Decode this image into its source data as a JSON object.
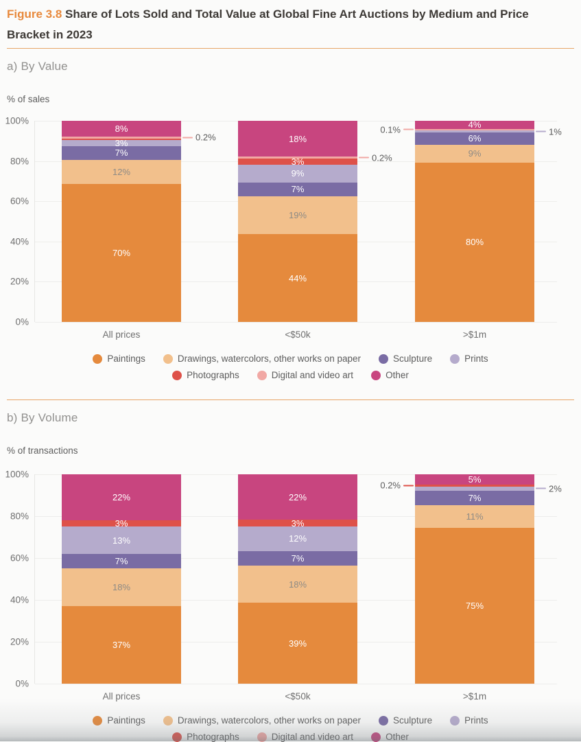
{
  "figure": {
    "label": "Figure 3.8",
    "title": "Share of Lots Sold and Total Value at Global Fine Art Auctions by Medium and Price Bracket in 2023"
  },
  "colors": {
    "accent": "#E8893C",
    "divider": "#E7A567",
    "paintings": "#E58A3D",
    "drawings": "#F2C08C",
    "sculpture": "#7A6CA4",
    "prints": "#B5ABCC",
    "photographs": "#DE5149",
    "digital": "#F1A8A4",
    "other": "#C8457F"
  },
  "legend": [
    {
      "key": "paintings",
      "label": "Paintings"
    },
    {
      "key": "drawings",
      "label": "Drawings, watercolors, other works on paper"
    },
    {
      "key": "sculpture",
      "label": "Sculpture"
    },
    {
      "key": "prints",
      "label": "Prints"
    },
    {
      "key": "photographs",
      "label": "Photographs"
    },
    {
      "key": "digital",
      "label": "Digital and video art"
    },
    {
      "key": "other",
      "label": "Other"
    }
  ],
  "chart_data": [
    {
      "type": "bar",
      "stacked": true,
      "section_label": "a) By Value",
      "ylabel": "% of sales",
      "ylim": [
        0,
        100
      ],
      "yticks": [
        0,
        20,
        40,
        60,
        80,
        100
      ],
      "grid": true,
      "legend_position": "bottom",
      "categories": [
        "All prices",
        "<$50k",
        ">$1m"
      ],
      "bars": [
        {
          "category": "All prices",
          "segments": [
            {
              "key": "paintings",
              "value": 70,
              "label": "70%"
            },
            {
              "key": "drawings",
              "value": 12,
              "label": "12%"
            },
            {
              "key": "sculpture",
              "value": 7,
              "label": "7%"
            },
            {
              "key": "prints",
              "value": 3,
              "label": "3%"
            },
            {
              "key": "photographs",
              "value": 0.8,
              "label": null
            },
            {
              "key": "digital",
              "value": 0.2,
              "label": null,
              "callout": {
                "text": "0.2%",
                "side": "right"
              }
            },
            {
              "key": "other",
              "value": 8,
              "label": "8%"
            }
          ]
        },
        {
          "category": "<$50k",
          "segments": [
            {
              "key": "paintings",
              "value": 44,
              "label": "44%"
            },
            {
              "key": "drawings",
              "value": 19,
              "label": "19%"
            },
            {
              "key": "sculpture",
              "value": 7,
              "label": "7%"
            },
            {
              "key": "prints",
              "value": 9,
              "label": "9%"
            },
            {
              "key": "photographs",
              "value": 3,
              "label": "3%"
            },
            {
              "key": "digital",
              "value": 0.2,
              "label": null,
              "callout": {
                "text": "0.2%",
                "side": "right"
              }
            },
            {
              "key": "other",
              "value": 18,
              "label": "18%"
            }
          ]
        },
        {
          "category": ">$1m",
          "segments": [
            {
              "key": "paintings",
              "value": 80,
              "label": "80%"
            },
            {
              "key": "drawings",
              "value": 9,
              "label": "9%"
            },
            {
              "key": "sculpture",
              "value": 6,
              "label": "6%"
            },
            {
              "key": "prints",
              "value": 1,
              "label": null,
              "callout": {
                "text": "1%",
                "side": "right"
              }
            },
            {
              "key": "digital",
              "value": 0.1,
              "label": null,
              "callout": {
                "text": "0.1%",
                "side": "left"
              }
            },
            {
              "key": "other",
              "value": 4,
              "label": "4%"
            }
          ]
        }
      ]
    },
    {
      "type": "bar",
      "stacked": true,
      "section_label": "b) By Volume",
      "ylabel": "% of transactions",
      "ylim": [
        0,
        100
      ],
      "yticks": [
        0,
        20,
        40,
        60,
        80,
        100
      ],
      "grid": true,
      "legend_position": "bottom",
      "categories": [
        "All prices",
        "<$50k",
        ">$1m"
      ],
      "bars": [
        {
          "category": "All prices",
          "segments": [
            {
              "key": "paintings",
              "value": 37,
              "label": "37%"
            },
            {
              "key": "drawings",
              "value": 18,
              "label": "18%"
            },
            {
              "key": "sculpture",
              "value": 7,
              "label": "7%"
            },
            {
              "key": "prints",
              "value": 13,
              "label": "13%"
            },
            {
              "key": "photographs",
              "value": 3,
              "label": "3%"
            },
            {
              "key": "other",
              "value": 22,
              "label": "22%"
            }
          ]
        },
        {
          "category": "<$50k",
          "segments": [
            {
              "key": "paintings",
              "value": 39,
              "label": "39%"
            },
            {
              "key": "drawings",
              "value": 18,
              "label": "18%"
            },
            {
              "key": "sculpture",
              "value": 7,
              "label": "7%"
            },
            {
              "key": "prints",
              "value": 12,
              "label": "12%"
            },
            {
              "key": "photographs",
              "value": 3,
              "label": "3%"
            },
            {
              "key": "other",
              "value": 22,
              "label": "22%"
            }
          ]
        },
        {
          "category": ">$1m",
          "segments": [
            {
              "key": "paintings",
              "value": 75,
              "label": "75%"
            },
            {
              "key": "drawings",
              "value": 11,
              "label": "11%"
            },
            {
              "key": "sculpture",
              "value": 7,
              "label": "7%"
            },
            {
              "key": "prints",
              "value": 2,
              "label": null,
              "callout": {
                "text": "2%",
                "side": "right"
              }
            },
            {
              "key": "photographs",
              "value": 0.2,
              "label": null,
              "callout": {
                "text": "0.2%",
                "side": "left"
              }
            },
            {
              "key": "other",
              "value": 5,
              "label": "5%"
            }
          ]
        }
      ]
    }
  ]
}
